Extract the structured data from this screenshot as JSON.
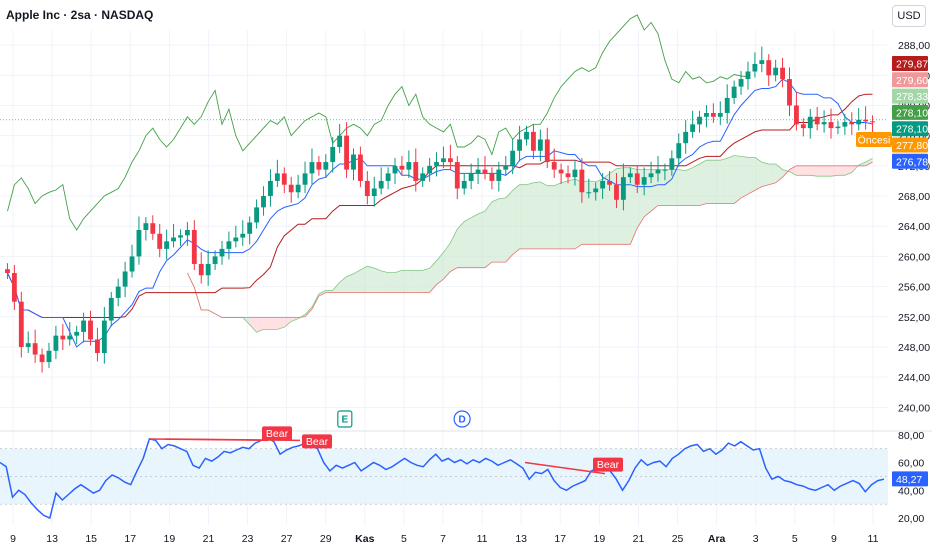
{
  "header": {
    "title": "Apple Inc · 2sa · NASDAQ",
    "currency": "USD"
  },
  "colors": {
    "up": "#089981",
    "down": "#f23645",
    "tenkan": "#2962ff",
    "kijun": "#b71c1c",
    "chikou": "#43a047",
    "cloud_bull": "#c8e6c9",
    "cloud_bear": "#ffcdd2",
    "rsi": "#2962ff",
    "rsi_band": "#e3f2fd",
    "bear_tag": "#f23645"
  },
  "chart_data": [
    {
      "type": "candlestick",
      "title": "",
      "ylim": [
        237,
        290
      ],
      "y_ticks": [
        "240,00",
        "244,00",
        "248,00",
        "252,00",
        "256,00",
        "260,00",
        "264,00",
        "268,00",
        "272,00",
        "276,00",
        "280,00",
        "284,00",
        "288,00"
      ],
      "x_ticks": [
        "9",
        "13",
        "15",
        "17",
        "19",
        "21",
        "23",
        "27",
        "29",
        "Kas",
        "5",
        "7",
        "11",
        "13",
        "17",
        "19",
        "21",
        "25",
        "Ara",
        "3",
        "5",
        "9",
        "11"
      ],
      "close_points": [
        257.8,
        254,
        248,
        248.5,
        247,
        246,
        247.5,
        249.5,
        249,
        249.5,
        250,
        251.5,
        249,
        247.2,
        251.5,
        254.5,
        256,
        258,
        260,
        263.5,
        264.4,
        263,
        261,
        262,
        262.5,
        262.8,
        263.5,
        259,
        257.5,
        259,
        260,
        261,
        262,
        262.5,
        263,
        264.5,
        266.5,
        268,
        270,
        271,
        269.5,
        268.5,
        269.5,
        271,
        272.5,
        271.5,
        272.5,
        274.5,
        276,
        271.5,
        273.5,
        270,
        268,
        269,
        270,
        271,
        272,
        271.5,
        272.5,
        270,
        271,
        272,
        272.5,
        273,
        272.5,
        269,
        270,
        271,
        271.5,
        271,
        270,
        271.5,
        272,
        274,
        275.5,
        276.5,
        274,
        275.5,
        272.5,
        271.5,
        271,
        270.5,
        271.5,
        268.5,
        268.5,
        269,
        270,
        269.5,
        267.5,
        270.5,
        271,
        269.5,
        270.5,
        271,
        271.5,
        271.5,
        273,
        275,
        276.5,
        277.5,
        278.5,
        279,
        278.5,
        279,
        281,
        282.5,
        283.5,
        284.5,
        285.5,
        286,
        284,
        285,
        283.5,
        280,
        277.5,
        277,
        278.5,
        277.5,
        277.8,
        277,
        277.2,
        277.8,
        277.5,
        278.1,
        277.9,
        277.8
      ],
      "price_tags": [
        {
          "label": "279,87",
          "value": 279.87,
          "color": "#b71c1c"
        },
        {
          "label": "279,60",
          "value": 279.6,
          "color": "#ef9a9a"
        },
        {
          "label": "278,33",
          "value": 278.33,
          "color": "#a5d6a7"
        },
        {
          "label": "278,10",
          "value": 278.1,
          "color": "#43a047"
        },
        {
          "label": "278,10",
          "value": 278.1,
          "color": "#089981"
        },
        {
          "label": "277,80",
          "value": 277.8,
          "color": "#ff9800"
        },
        {
          "label": "276,78",
          "value": 276.78,
          "color": "#2962ff"
        }
      ],
      "pre_market_label": "Öncesi",
      "events": [
        {
          "label": "E",
          "color": "#089981",
          "x_tick_ref": "Kas"
        },
        {
          "label": "D",
          "color": "#2962ff",
          "x_tick_ref": "11"
        }
      ]
    },
    {
      "type": "line",
      "title": "",
      "ylim": [
        15,
        82
      ],
      "y_ticks": [
        "20,00",
        "40,00",
        "60,00",
        "80,00"
      ],
      "band": [
        30,
        70
      ],
      "values": [
        60,
        57,
        35,
        40,
        37,
        31,
        26,
        22,
        20,
        38,
        33,
        37,
        41,
        44,
        41,
        38,
        40,
        47,
        51,
        49,
        46,
        44,
        54,
        63,
        77,
        76,
        70,
        73,
        72,
        70,
        68,
        58,
        56,
        63,
        61,
        64,
        68,
        67,
        69,
        71,
        70,
        74,
        76,
        78,
        75,
        66,
        69,
        71,
        72,
        74,
        73,
        70,
        60,
        54,
        58,
        56,
        58,
        60,
        54,
        57,
        60,
        58,
        55,
        57,
        60,
        63,
        60,
        58,
        57,
        62,
        66,
        61,
        63,
        60,
        62,
        59,
        62,
        60,
        63,
        61,
        58,
        60,
        62,
        59,
        56,
        48,
        53,
        52,
        55,
        47,
        42,
        40,
        43,
        45,
        47,
        54,
        56,
        59,
        54,
        48,
        40,
        47,
        56,
        62,
        58,
        60,
        61,
        57,
        63,
        66,
        70,
        72,
        73,
        68,
        70,
        66,
        69,
        74,
        72,
        75,
        72,
        69,
        70,
        56,
        48,
        50,
        47,
        46,
        44,
        43,
        41,
        40,
        42,
        44,
        40,
        43,
        45,
        47,
        45,
        39,
        44,
        47,
        48
      ],
      "last_label": "48,27",
      "bear_tags": [
        "Bear",
        "Bear",
        "Bear"
      ]
    }
  ]
}
